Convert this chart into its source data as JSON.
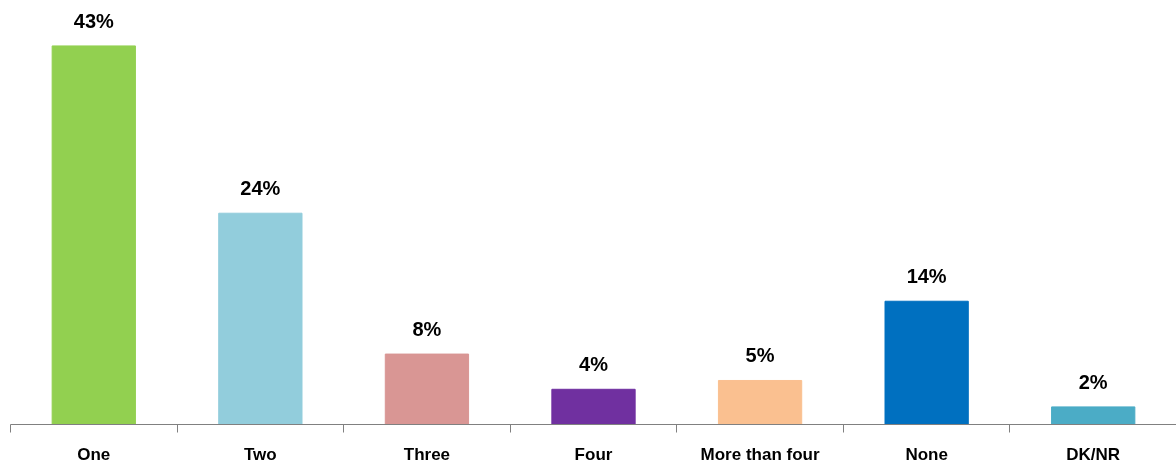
{
  "chart_data": {
    "type": "bar",
    "categories": [
      "One",
      "Two",
      "Three",
      "Four",
      "More than four",
      "None",
      "DK/NR"
    ],
    "values": [
      43,
      24,
      8,
      4,
      5,
      14,
      2
    ],
    "colors": [
      "#92d050",
      "#92cddc",
      "#d99694",
      "#7030a0",
      "#fac090",
      "#0070c0",
      "#4bacc6"
    ],
    "value_labels": [
      "43%",
      "24%",
      "8%",
      "4%",
      "5%",
      "14%",
      "2%"
    ]
  }
}
